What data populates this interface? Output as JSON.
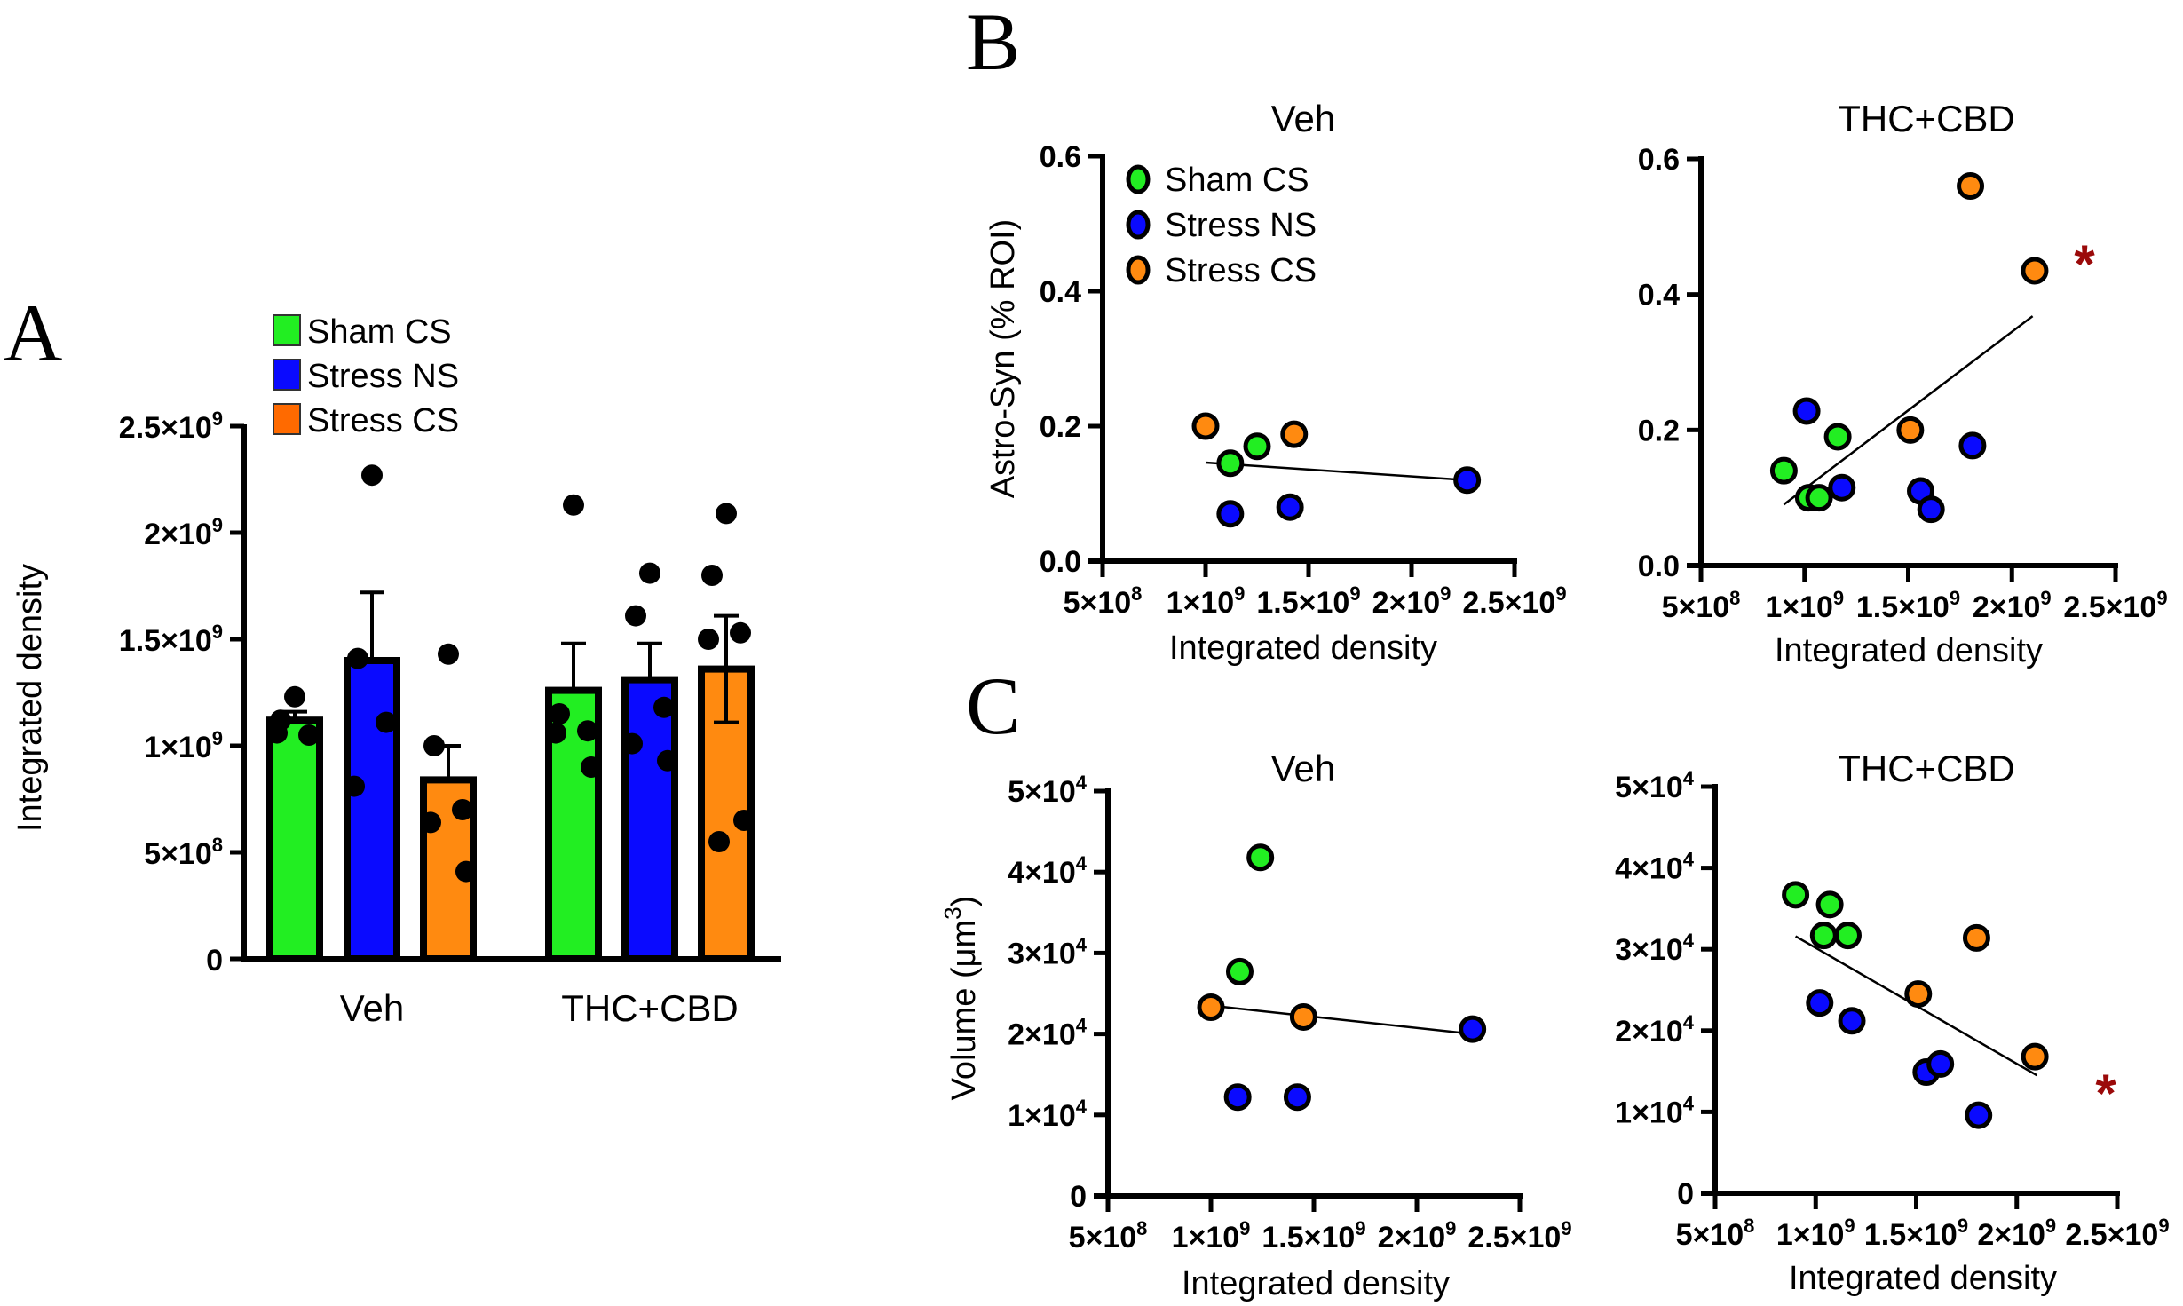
{
  "colors": {
    "sham_cs": "#22ee22",
    "stress_ns": "#0a0aff",
    "stress_cs": "#ff8a10",
    "legend_stress_cs": "#ff6a00",
    "axis": "#000000",
    "significance": "#9b0a0a"
  },
  "chart_data": [
    {
      "id": "A",
      "panel_label": "A",
      "type": "bar",
      "title": "",
      "xlabel": "",
      "ylabel": "Integrated density",
      "ylim": [
        0,
        2500000000
      ],
      "yticks": [
        {
          "value": 0,
          "label": "0",
          "exp": ""
        },
        {
          "value": 500000000,
          "label": "5×10",
          "exp": "8"
        },
        {
          "value": 1000000000,
          "label": "1×10",
          "exp": "9"
        },
        {
          "value": 1500000000,
          "label": "1.5×10",
          "exp": "9"
        },
        {
          "value": 2000000000,
          "label": "2×10",
          "exp": "9"
        },
        {
          "value": 2500000000,
          "label": "2.5×10",
          "exp": "9"
        }
      ],
      "categories": [
        "Veh",
        "THC+CBD"
      ],
      "legend": {
        "placement": "top-left",
        "entries": [
          {
            "name": "Sham CS",
            "color_key": "sham_cs"
          },
          {
            "name": "Stress NS",
            "color_key": "stress_ns"
          },
          {
            "name": "Stress CS",
            "color_key": "legend_stress_cs"
          }
        ]
      },
      "series": [
        {
          "name": "Sham CS",
          "color_key": "sham_cs",
          "values": [
            1120000000,
            1260000000
          ],
          "sem": [
            40000000,
            220000000
          ],
          "points": [
            [
              1230000000,
              1120000000,
              1050000000,
              1060000000
            ],
            [
              2130000000,
              1150000000,
              1070000000,
              1060000000,
              900000000
            ]
          ]
        },
        {
          "name": "Stress NS",
          "color_key": "stress_ns",
          "values": [
            1400000000,
            1310000000
          ],
          "sem": [
            320000000,
            170000000
          ],
          "points": [
            [
              2270000000,
              1410000000,
              1110000000,
              810000000
            ],
            [
              1810000000,
              1610000000,
              1180000000,
              1010000000,
              930000000
            ]
          ]
        },
        {
          "name": "Stress CS",
          "color_key": "stress_cs",
          "values": [
            840000000,
            1360000000
          ],
          "sem": [
            160000000,
            250000000
          ],
          "points": [
            [
              1430000000,
              1000000000,
              700000000,
              640000000,
              410000000
            ],
            [
              2090000000,
              1800000000,
              1530000000,
              1500000000,
              650000000,
              550000000
            ]
          ]
        }
      ]
    },
    {
      "id": "B-veh",
      "panel_label": "B",
      "type": "scatter",
      "title": "Veh",
      "xlabel": "Integrated density",
      "ylabel": "Astro-Syn (% ROI)",
      "xlim": [
        500000000,
        2500000000
      ],
      "ylim": [
        0,
        0.6
      ],
      "xticks": [
        {
          "value": 500000000,
          "label": "5×10",
          "exp": "8"
        },
        {
          "value": 1000000000,
          "label": "1×10",
          "exp": "9"
        },
        {
          "value": 1500000000,
          "label": "1.5×10",
          "exp": "9"
        },
        {
          "value": 2000000000,
          "label": "2×10",
          "exp": "9"
        },
        {
          "value": 2500000000,
          "label": "2.5×10",
          "exp": "9"
        }
      ],
      "yticks": [
        {
          "value": 0,
          "label": "0.0",
          "exp": ""
        },
        {
          "value": 0.2,
          "label": "0.2",
          "exp": ""
        },
        {
          "value": 0.4,
          "label": "0.4",
          "exp": ""
        },
        {
          "value": 0.6,
          "label": "0.6",
          "exp": ""
        }
      ],
      "legend": {
        "placement": "top-left",
        "entries": [
          {
            "name": "Sham CS",
            "color_key": "sham_cs"
          },
          {
            "name": "Stress NS",
            "color_key": "stress_ns"
          },
          {
            "name": "Stress CS",
            "color_key": "stress_cs"
          }
        ]
      },
      "series": [
        {
          "name": "Sham CS",
          "color_key": "sham_cs",
          "x": [
            1120000000,
            1250000000
          ],
          "y": [
            0.145,
            0.17
          ]
        },
        {
          "name": "Stress NS",
          "color_key": "stress_ns",
          "x": [
            1120000000,
            1410000000,
            2270000000
          ],
          "y": [
            0.07,
            0.08,
            0.12
          ]
        },
        {
          "name": "Stress CS",
          "color_key": "stress_cs",
          "x": [
            1000000000,
            1430000000
          ],
          "y": [
            0.2,
            0.188
          ]
        }
      ],
      "fit_line": {
        "x": [
          1000000000,
          2270000000
        ],
        "y": [
          0.146,
          0.12
        ]
      },
      "significance": ""
    },
    {
      "id": "B-thc",
      "panel_label": "",
      "type": "scatter",
      "title": "THC+CBD",
      "xlabel": "Integrated density",
      "ylabel": "",
      "xlim": [
        500000000,
        2500000000
      ],
      "ylim": [
        0,
        0.6
      ],
      "xticks": [
        {
          "value": 500000000,
          "label": "5×10",
          "exp": "8"
        },
        {
          "value": 1000000000,
          "label": "1×10",
          "exp": "9"
        },
        {
          "value": 1500000000,
          "label": "1.5×10",
          "exp": "9"
        },
        {
          "value": 2000000000,
          "label": "2×10",
          "exp": "9"
        },
        {
          "value": 2500000000,
          "label": "2.5×10",
          "exp": "9"
        }
      ],
      "yticks": [
        {
          "value": 0,
          "label": "0.0",
          "exp": ""
        },
        {
          "value": 0.2,
          "label": "0.2",
          "exp": ""
        },
        {
          "value": 0.4,
          "label": "0.4",
          "exp": ""
        },
        {
          "value": 0.6,
          "label": "0.6",
          "exp": ""
        }
      ],
      "series": [
        {
          "name": "Sham CS",
          "color_key": "sham_cs",
          "x": [
            900000000,
            1020000000,
            1070000000,
            1160000000
          ],
          "y": [
            0.14,
            0.1,
            0.1,
            0.19
          ]
        },
        {
          "name": "Stress NS",
          "color_key": "stress_ns",
          "x": [
            1010000000,
            1180000000,
            1560000000,
            1610000000,
            1810000000
          ],
          "y": [
            0.228,
            0.115,
            0.11,
            0.083,
            0.177
          ]
        },
        {
          "name": "Stress CS",
          "color_key": "stress_cs",
          "x": [
            1510000000,
            1800000000,
            2110000000
          ],
          "y": [
            0.2,
            0.56,
            0.435
          ]
        }
      ],
      "fit_line": {
        "x": [
          900000000,
          2100000000
        ],
        "y": [
          0.09,
          0.368
        ]
      },
      "significance": "*"
    },
    {
      "id": "C-veh",
      "panel_label": "C",
      "type": "scatter",
      "title": "Veh",
      "xlabel": "Integrated density",
      "ylabel": "Volume (μm",
      "ylabel_sup": "3",
      "ylabel_end": ")",
      "xlim": [
        500000000,
        2500000000
      ],
      "ylim": [
        0,
        50000
      ],
      "xticks": [
        {
          "value": 500000000,
          "label": "5×10",
          "exp": "8"
        },
        {
          "value": 1000000000,
          "label": "1×10",
          "exp": "9"
        },
        {
          "value": 1500000000,
          "label": "1.5×10",
          "exp": "9"
        },
        {
          "value": 2000000000,
          "label": "2×10",
          "exp": "9"
        },
        {
          "value": 2500000000,
          "label": "2.5×10",
          "exp": "9"
        }
      ],
      "yticks": [
        {
          "value": 0,
          "label": "0",
          "exp": ""
        },
        {
          "value": 10000,
          "label": "1×10",
          "exp": "4"
        },
        {
          "value": 20000,
          "label": "2×10",
          "exp": "4"
        },
        {
          "value": 30000,
          "label": "3×10",
          "exp": "4"
        },
        {
          "value": 40000,
          "label": "4×10",
          "exp": "4"
        },
        {
          "value": 50000,
          "label": "5×10",
          "exp": "4"
        }
      ],
      "series": [
        {
          "name": "Sham CS",
          "color_key": "sham_cs",
          "x": [
            1240000000,
            1140000000
          ],
          "y": [
            41800,
            27700
          ]
        },
        {
          "name": "Stress NS",
          "color_key": "stress_ns",
          "x": [
            2270000000,
            1130000000,
            1420000000
          ],
          "y": [
            20600,
            12200,
            12200
          ]
        },
        {
          "name": "Stress CS",
          "color_key": "stress_cs",
          "x": [
            1000000000,
            1450000000
          ],
          "y": [
            23300,
            22100
          ]
        }
      ],
      "fit_line": {
        "x": [
          1000000000,
          2270000000
        ],
        "y": [
          23500,
          20000
        ]
      },
      "significance": ""
    },
    {
      "id": "C-thc",
      "panel_label": "",
      "type": "scatter",
      "title": "THC+CBD",
      "xlabel": "Integrated density",
      "ylabel": "",
      "xlim": [
        500000000,
        2500000000
      ],
      "ylim": [
        0,
        50000
      ],
      "xticks": [
        {
          "value": 500000000,
          "label": "5×10",
          "exp": "8"
        },
        {
          "value": 1000000000,
          "label": "1×10",
          "exp": "9"
        },
        {
          "value": 1500000000,
          "label": "1.5×10",
          "exp": "9"
        },
        {
          "value": 2000000000,
          "label": "2×10",
          "exp": "9"
        },
        {
          "value": 2500000000,
          "label": "2.5×10",
          "exp": "9"
        }
      ],
      "yticks": [
        {
          "value": 0,
          "label": "0",
          "exp": ""
        },
        {
          "value": 10000,
          "label": "1×10",
          "exp": "4"
        },
        {
          "value": 20000,
          "label": "2×10",
          "exp": "4"
        },
        {
          "value": 30000,
          "label": "3×10",
          "exp": "4"
        },
        {
          "value": 40000,
          "label": "4×10",
          "exp": "4"
        },
        {
          "value": 50000,
          "label": "5×10",
          "exp": "4"
        }
      ],
      "series": [
        {
          "name": "Sham CS",
          "color_key": "sham_cs",
          "x": [
            900000000,
            1070000000,
            1040000000,
            1160000000
          ],
          "y": [
            36700,
            35500,
            31700,
            31700
          ]
        },
        {
          "name": "Stress NS",
          "color_key": "stress_ns",
          "x": [
            1020000000,
            1180000000,
            1550000000,
            1620000000,
            1810000000
          ],
          "y": [
            23400,
            21200,
            14900,
            15900,
            9600
          ]
        },
        {
          "name": "Stress CS",
          "color_key": "stress_cs",
          "x": [
            1510000000,
            1800000000,
            2090000000
          ],
          "y": [
            24500,
            31400,
            16800
          ]
        }
      ],
      "fit_line": {
        "x": [
          900000000,
          2100000000
        ],
        "y": [
          31600,
          14500
        ]
      },
      "significance": "*"
    }
  ]
}
